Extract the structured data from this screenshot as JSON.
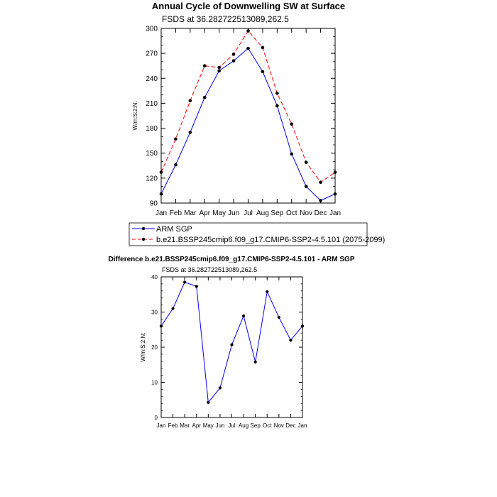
{
  "chart_data": [
    {
      "type": "line",
      "title": "Annual Cycle of Downwelling SW at Surface",
      "subtitle": "FSDS at 36.282722513089,262.5",
      "ylabel": "W/m:S:2:N:",
      "xlabel": "",
      "categories": [
        "Jan",
        "Feb",
        "Mar",
        "Apr",
        "May",
        "Jun",
        "Jul",
        "Aug",
        "Sep",
        "Oct",
        "Nov",
        "Dec",
        "Jan"
      ],
      "ylim": [
        90,
        300
      ],
      "yticks": [
        90,
        120,
        150,
        180,
        210,
        240,
        270,
        300
      ],
      "series": [
        {
          "name": "ARM SGP",
          "color": "#0000ff",
          "style": "solid",
          "values": [
            101,
            136,
            175,
            217,
            249,
            261,
            276,
            248,
            207,
            149,
            110,
            93,
            101
          ]
        },
        {
          "name": "b.e21.BSSP245cmip6.f09_g17.CMIP6-SSP2-4.5.101 (2075-2099)",
          "color": "#ff0000",
          "style": "dashed",
          "values": [
            127,
            167,
            213,
            255,
            253,
            269,
            297,
            277,
            222,
            185,
            139,
            115,
            127
          ]
        }
      ],
      "legend": "below"
    },
    {
      "type": "line",
      "title": "Difference b.e21.BSSP245cmip6.f09_g17.CMIP6-SSP2-4.5.101 - ARM SGP",
      "subtitle": "FSDS at 36.282722513089,262.5",
      "ylabel": "W/m:S:2:N:",
      "xlabel": "",
      "categories": [
        "Jan",
        "Feb",
        "Mar",
        "Apr",
        "May",
        "Jun",
        "Jul",
        "Aug",
        "Sep",
        "Oct",
        "Nov",
        "Dec",
        "Jan"
      ],
      "ylim": [
        0,
        40
      ],
      "yticks": [
        0,
        10,
        20,
        30,
        40
      ],
      "series": [
        {
          "name": "",
          "color": "#0000ff",
          "style": "solid",
          "values": [
            26,
            31,
            38.5,
            37.3,
            4.3,
            8.4,
            20.7,
            28.9,
            15.8,
            35.8,
            28.5,
            22,
            26
          ]
        }
      ]
    }
  ]
}
